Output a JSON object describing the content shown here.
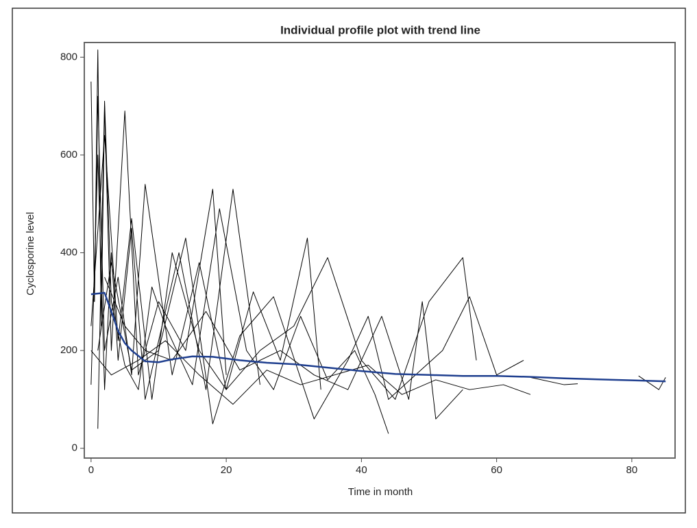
{
  "chart_data": {
    "type": "line",
    "title": "Individual profile plot with trend line",
    "x_label": "Time in month",
    "y_label": "Cyclosporine level",
    "xlim": [
      -1,
      86.4
    ],
    "ylim": [
      -20,
      830
    ],
    "xticks": [
      0,
      20,
      40,
      60,
      80
    ],
    "yticks": [
      0,
      200,
      400,
      600,
      800
    ],
    "grid": false,
    "series": [
      {
        "color": "#000000",
        "line_width": 1,
        "x": [
          0,
          0.5,
          1,
          1.5,
          2,
          3,
          5,
          7,
          10,
          14,
          18,
          20
        ],
        "values": [
          750,
          300,
          815,
          250,
          700,
          200,
          690,
          150,
          300,
          200,
          530,
          150
        ]
      },
      {
        "color": "#000000",
        "line_width": 1,
        "x": [
          0,
          1,
          2,
          3,
          4,
          6,
          8,
          10,
          13,
          17,
          21,
          25
        ],
        "values": [
          130,
          600,
          120,
          400,
          180,
          450,
          100,
          220,
          400,
          120,
          530,
          130
        ]
      },
      {
        "color": "#000000",
        "line_width": 1,
        "x": [
          0.5,
          1,
          2,
          4,
          6,
          8,
          12,
          16,
          20,
          24,
          28,
          32,
          34
        ],
        "values": [
          300,
          720,
          200,
          350,
          150,
          540,
          150,
          380,
          120,
          320,
          180,
          430,
          120
        ]
      },
      {
        "color": "#000000",
        "line_width": 1,
        "x": [
          1,
          2,
          3,
          5,
          7,
          9,
          11,
          15,
          19,
          23,
          27,
          31,
          35,
          39,
          42,
          44
        ],
        "values": [
          40,
          710,
          300,
          170,
          120,
          330,
          250,
          130,
          490,
          200,
          120,
          270,
          140,
          200,
          110,
          30
        ]
      },
      {
        "color": "#000000",
        "line_width": 1,
        "x": [
          0,
          2,
          4,
          6,
          9,
          12,
          16,
          20,
          25,
          30,
          35,
          40,
          45,
          50,
          55,
          57
        ],
        "values": [
          250,
          640,
          220,
          470,
          100,
          400,
          200,
          120,
          200,
          250,
          390,
          180,
          100,
          300,
          390,
          180
        ]
      },
      {
        "color": "#000000",
        "line_width": 1,
        "x": [
          1,
          3,
          6,
          10,
          14,
          18,
          22,
          27,
          33,
          38,
          41,
          44,
          48,
          52,
          56,
          60,
          64
        ],
        "values": [
          200,
          380,
          160,
          200,
          430,
          50,
          230,
          310,
          60,
          180,
          270,
          100,
          150,
          200,
          310,
          150,
          180
        ]
      },
      {
        "color": "#000000",
        "line_width": 1,
        "x": [
          2,
          5,
          8,
          12,
          17,
          22,
          28,
          33,
          38,
          43,
          47,
          49,
          51,
          55
        ],
        "values": [
          350,
          250,
          200,
          180,
          280,
          160,
          200,
          150,
          120,
          270,
          100,
          300,
          60,
          120
        ]
      },
      {
        "color": "#000000",
        "line_width": 1,
        "x": [
          0,
          3,
          7,
          11,
          16,
          21,
          26,
          31,
          36,
          41,
          46,
          51,
          56,
          61,
          65
        ],
        "values": [
          200,
          150,
          180,
          220,
          150,
          90,
          160,
          130,
          150,
          170,
          110,
          140,
          120,
          130,
          110
        ]
      },
      {
        "color": "#000000",
        "line_width": 1,
        "x": [
          65,
          70,
          72
        ],
        "values": [
          145,
          130,
          132
        ]
      },
      {
        "color": "#000000",
        "line_width": 1,
        "x": [
          81,
          84,
          85
        ],
        "values": [
          148,
          120,
          145
        ]
      },
      {
        "color": "#1f3f8f",
        "line_width": 2.5,
        "x": [
          0,
          2,
          3,
          4,
          5,
          6,
          8,
          10,
          12,
          15,
          18,
          22,
          26,
          30,
          35,
          40,
          45,
          50,
          55,
          60,
          65,
          70,
          75,
          80,
          85
        ],
        "values": [
          315,
          318,
          280,
          240,
          215,
          200,
          178,
          176,
          182,
          188,
          187,
          180,
          175,
          172,
          165,
          158,
          152,
          150,
          148,
          148,
          146,
          143,
          141,
          139,
          137
        ]
      }
    ]
  }
}
